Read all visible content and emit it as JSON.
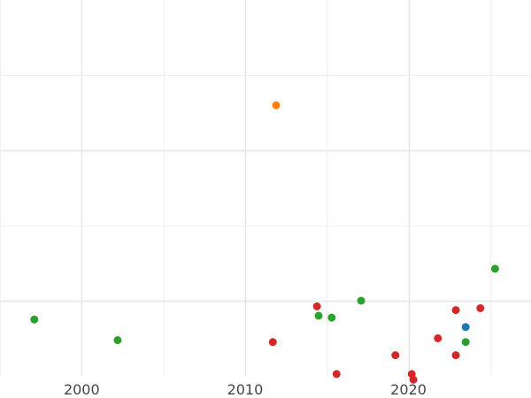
{
  "chart_data": {
    "type": "scatter",
    "title": "",
    "xlabel": "",
    "ylabel": "",
    "xlim": [
      1995,
      2027.5
    ],
    "ylim": [
      0,
      100
    ],
    "x_ticks": [
      {
        "value": 2000,
        "label": "2000"
      },
      {
        "value": 2010,
        "label": "2010"
      },
      {
        "value": 2020,
        "label": "2020"
      }
    ],
    "x_minor_gridlines": [
      1995,
      2005,
      2015,
      2025
    ],
    "y_major_gridlines": [
      20,
      60
    ],
    "y_minor_gridlines": [
      40,
      80
    ],
    "y_tick_labels_shown": false,
    "grid": true,
    "legend": "none",
    "series": [
      {
        "color": "#1f77b4",
        "points": [
          {
            "x": 2023.5,
            "y": 13
          }
        ]
      },
      {
        "color": "#ff7f0e",
        "points": [
          {
            "x": 2011.9,
            "y": 72
          }
        ]
      },
      {
        "color": "#2ca02c",
        "points": [
          {
            "x": 1997.1,
            "y": 15
          },
          {
            "x": 2002.2,
            "y": 9.5
          },
          {
            "x": 2014.5,
            "y": 16
          },
          {
            "x": 2015.3,
            "y": 15.5
          },
          {
            "x": 2017.1,
            "y": 20
          },
          {
            "x": 2023.5,
            "y": 9
          },
          {
            "x": 2025.3,
            "y": 28.5
          }
        ]
      },
      {
        "color": "#d62728",
        "points": [
          {
            "x": 2011.7,
            "y": 9
          },
          {
            "x": 2014.4,
            "y": 18.5
          },
          {
            "x": 2015.6,
            "y": 0.5
          },
          {
            "x": 2019.2,
            "y": 5.5
          },
          {
            "x": 2020.2,
            "y": 0.5
          },
          {
            "x": 2020.3,
            "y": -1
          },
          {
            "x": 2021.8,
            "y": 10
          },
          {
            "x": 2022.9,
            "y": 17.5
          },
          {
            "x": 2022.9,
            "y": 5.5
          },
          {
            "x": 2024.4,
            "y": 18
          }
        ]
      }
    ]
  }
}
